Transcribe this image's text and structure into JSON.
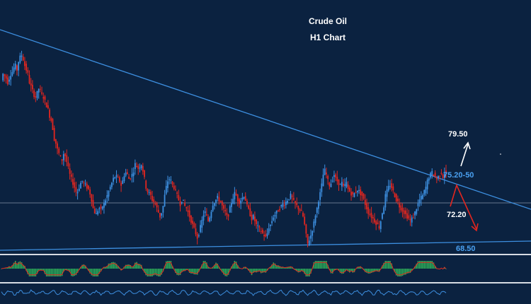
{
  "chart_data": {
    "type": "candlestick",
    "title": "Crude Oil",
    "subtitle": "H1 Chart",
    "current_price": 72.2,
    "colors": {
      "background": "#0b2240",
      "bull": "#3d8fe0",
      "bear": "#e3261f",
      "trendline": "#3d8fe0",
      "level_white": "#ffffff",
      "level_blue": "#4aa0f0",
      "arrow_up": "#ffffff",
      "arrow_down": "#e3261f",
      "macd_bar": "#2fb35a",
      "price_line": "#8a9bb0"
    },
    "annotations": [
      {
        "id": "target_up",
        "text": "79.50",
        "color": "#ffffff"
      },
      {
        "id": "resistance",
        "text": "75.20-50",
        "color": "#4aa0f0"
      },
      {
        "id": "current",
        "text": "72.20",
        "color": "#ffffff"
      },
      {
        "id": "support",
        "text": "68.50",
        "color": "#4aa0f0"
      }
    ],
    "trend_path": [
      75,
      78,
      77,
      76,
      74,
      76,
      78,
      79,
      81,
      82,
      80,
      84,
      86,
      87,
      85,
      82,
      80,
      78,
      74,
      72,
      70,
      68,
      67,
      69,
      71,
      70,
      68,
      67,
      65,
      63,
      61,
      58,
      56,
      52,
      47,
      45,
      42,
      40,
      38,
      37,
      40,
      39,
      36,
      33,
      30,
      28,
      26,
      24,
      22,
      22,
      24,
      26,
      27,
      26,
      25,
      24,
      23,
      21,
      18,
      14,
      12,
      11,
      13,
      14,
      13,
      15,
      16,
      18,
      20,
      22,
      24,
      26,
      28,
      29,
      29,
      28,
      27,
      25,
      27,
      30,
      31,
      30,
      28,
      29,
      30,
      32,
      35,
      34,
      33,
      34,
      35,
      32,
      28,
      24,
      22,
      21,
      20,
      18,
      17,
      16,
      14,
      12,
      10,
      12,
      15,
      20,
      24,
      27,
      28,
      27,
      25,
      24,
      22,
      20,
      18,
      16,
      18,
      17,
      15,
      14,
      12,
      10,
      8,
      6,
      4,
      2,
      0,
      2,
      5,
      8,
      11,
      12,
      10,
      8,
      10,
      13,
      16,
      17,
      18,
      19,
      18,
      17,
      15,
      13,
      12,
      10,
      11,
      14,
      17,
      19,
      21,
      20,
      18,
      17,
      18,
      19,
      20,
      18,
      15,
      13,
      11,
      9,
      10,
      8,
      6,
      5,
      4,
      3,
      2,
      1,
      0,
      2,
      5,
      6,
      8,
      10,
      11,
      12,
      13,
      14,
      15,
      16,
      16,
      17,
      18,
      19,
      20,
      19,
      17,
      16,
      15,
      14,
      13,
      12,
      10,
      6,
      1,
      -3,
      -1,
      1,
      4,
      7,
      11,
      14,
      18,
      21,
      25,
      30,
      32,
      30,
      27,
      25,
      26,
      28,
      30,
      28,
      27,
      26,
      25,
      26,
      24,
      25,
      26,
      23,
      22,
      21,
      20,
      21,
      22,
      23,
      22,
      21,
      20,
      18,
      16,
      14,
      12,
      11,
      10,
      9,
      8,
      7,
      6,
      5,
      8,
      12,
      15,
      20,
      22,
      24,
      25,
      24,
      22,
      20,
      18,
      17,
      15,
      14,
      13,
      12,
      11,
      10,
      9,
      8,
      9,
      10,
      12,
      14,
      16,
      18,
      19,
      20,
      22,
      24,
      27,
      29,
      30,
      31,
      30,
      29,
      28,
      29,
      30,
      31,
      29,
      31,
      30
    ]
  }
}
